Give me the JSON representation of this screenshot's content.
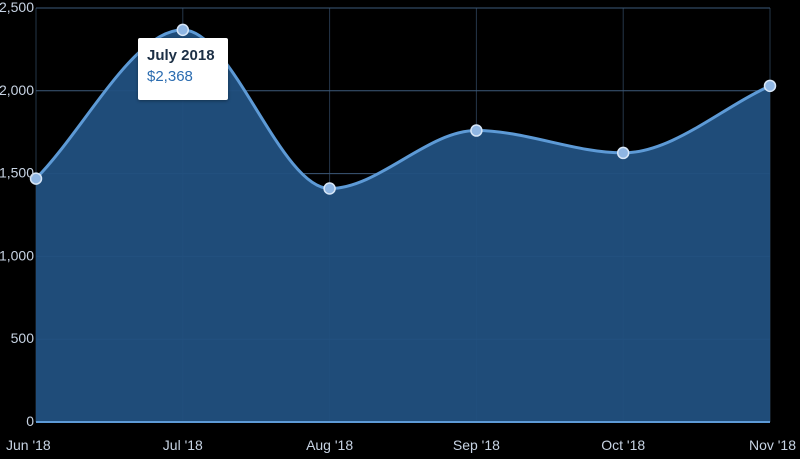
{
  "chart_data": {
    "type": "area",
    "categories": [
      "Jun '18",
      "Jul '18",
      "Aug '18",
      "Sep '18",
      "Oct '18",
      "Nov '18"
    ],
    "values": [
      1470,
      2368,
      1410,
      1760,
      1625,
      2030
    ],
    "ylim": [
      0,
      2500
    ],
    "yticks": [
      0,
      500,
      1000,
      1500,
      2000,
      2500
    ],
    "ytick_labels": [
      "0",
      "500",
      "1,000",
      "1,500",
      "2,000",
      "2,500"
    ],
    "grid": true,
    "colors": {
      "fill": "#21507f",
      "line": "#5d9ad6",
      "marker_fill": "#8fb6e3",
      "marker_stroke": "#d7e6f7",
      "grid": "#3d5a7a",
      "tick_text": "#c7d3e3"
    }
  },
  "tooltip": {
    "title": "July 2018",
    "value": "$2,368"
  }
}
